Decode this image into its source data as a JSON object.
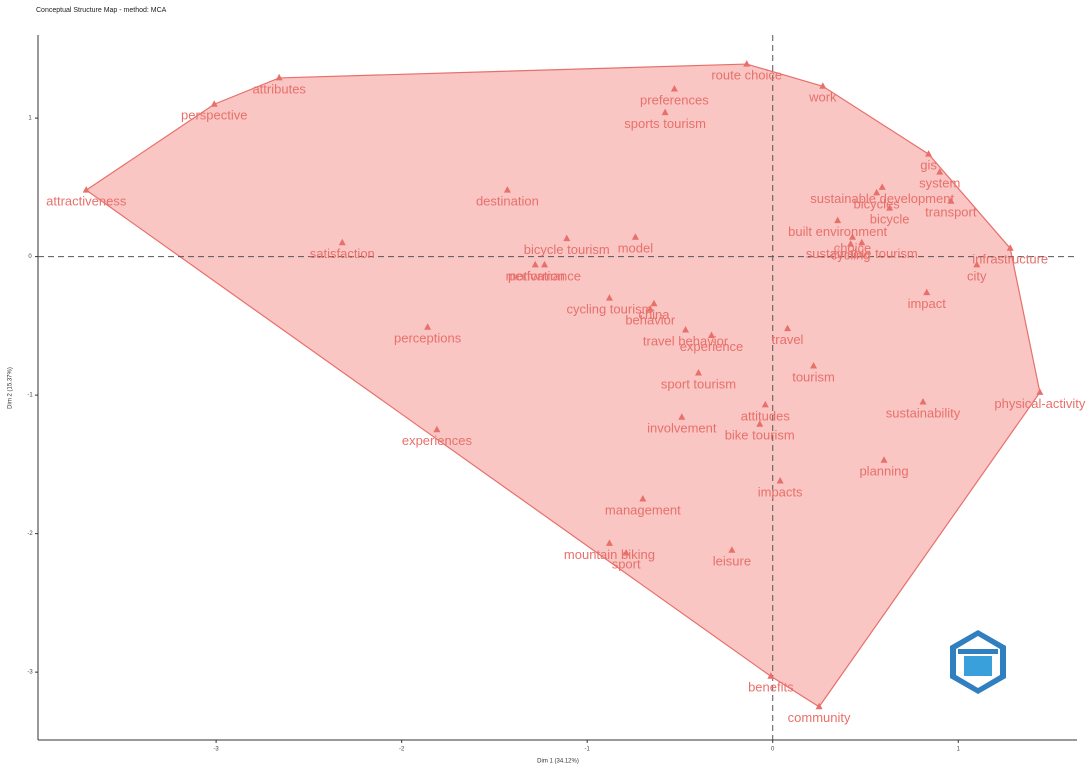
{
  "chart_data": {
    "type": "scatter",
    "title": "Conceptual Structure Map - method: MCA",
    "xlabel": "Dim 1 (34.12%)",
    "ylabel": "Dim 2 (15.37%)",
    "color": "#e8706b",
    "hull_fill": "#f7b3b0",
    "zero_lines": true,
    "labels": [
      "attractiveness",
      "perspective",
      "attributes",
      "route choice",
      "preferences",
      "sports tourism",
      "work",
      "gis",
      "sustainable development",
      "system",
      "bicycles",
      "transport",
      "bicycle",
      "built environment",
      "infrastructure",
      "choice",
      "sustainable tourism",
      "cycling",
      "city",
      "impact",
      "destination",
      "satisfaction",
      "bicycle tourism",
      "model",
      "motivation",
      "performance",
      "cycling tourism",
      "behavior",
      "china",
      "travel behavior",
      "experience",
      "travel",
      "perceptions",
      "tourism",
      "sport tourism",
      "physical-activity",
      "attitudes",
      "involvement",
      "sustainability",
      "experiences",
      "bike tourism",
      "planning",
      "impacts",
      "management",
      "mountain biking",
      "sport",
      "leisure",
      "benefits",
      "community"
    ],
    "x": [
      -3.7,
      -3.01,
      -2.66,
      -0.14,
      -0.53,
      -0.58,
      0.27,
      0.84,
      0.59,
      0.9,
      0.56,
      0.96,
      0.63,
      0.35,
      1.28,
      0.43,
      0.48,
      0.42,
      1.1,
      0.83,
      -1.43,
      -2.32,
      -1.11,
      -0.74,
      -1.28,
      -1.23,
      -0.88,
      -0.66,
      -0.64,
      -0.47,
      -0.33,
      0.08,
      -1.86,
      0.22,
      -0.4,
      1.44,
      -0.04,
      -0.49,
      0.81,
      -1.81,
      -0.07,
      0.6,
      0.04,
      -0.7,
      -0.88,
      -0.79,
      -0.22,
      -0.01,
      0.25
    ],
    "values": [
      0.48,
      1.1,
      1.29,
      1.39,
      1.21,
      1.04,
      1.23,
      0.74,
      0.5,
      0.61,
      0.46,
      0.4,
      0.35,
      0.26,
      0.06,
      0.14,
      0.1,
      0.09,
      -0.06,
      -0.26,
      0.48,
      0.1,
      0.13,
      0.14,
      -0.06,
      -0.06,
      -0.3,
      -0.38,
      -0.34,
      -0.53,
      -0.57,
      -0.52,
      -0.51,
      -0.79,
      -0.84,
      -0.98,
      -1.07,
      -1.16,
      -1.05,
      -1.25,
      -1.21,
      -1.47,
      -1.62,
      -1.75,
      -2.07,
      -2.14,
      -2.12,
      -3.03,
      -3.25
    ],
    "xlim": [
      -3.96,
      1.64
    ],
    "ylim": [
      -3.49,
      1.6
    ],
    "xticks": [
      -3,
      -2,
      -1,
      0,
      1
    ],
    "yticks": [
      1,
      0,
      -1,
      -2,
      -3
    ]
  }
}
